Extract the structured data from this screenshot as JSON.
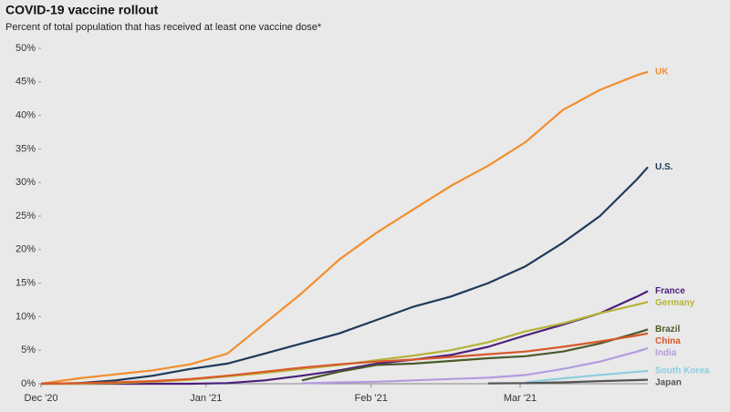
{
  "chart_data": {
    "type": "line",
    "title": "COVID-19 vaccine rollout",
    "subtitle": "Percent of total population that has received at least one vaccine dose*",
    "x": [
      0,
      7,
      14,
      21,
      28,
      35,
      42,
      49,
      56,
      63,
      70,
      77,
      84,
      91,
      98,
      105,
      112,
      114
    ],
    "xlim": [
      0,
      114
    ],
    "xticks": [
      {
        "value": 0,
        "label": "Dec '20"
      },
      {
        "value": 31,
        "label": "Jan '21"
      },
      {
        "value": 62,
        "label": "Feb '21"
      },
      {
        "value": 90,
        "label": "Mar '21"
      }
    ],
    "ylim": [
      0,
      50
    ],
    "yticks": [
      {
        "value": 0,
        "label": "0%"
      },
      {
        "value": 5,
        "label": "5%"
      },
      {
        "value": 10,
        "label": "10%"
      },
      {
        "value": 15,
        "label": "15%"
      },
      {
        "value": 20,
        "label": "20%"
      },
      {
        "value": 25,
        "label": "25%"
      },
      {
        "value": 30,
        "label": "30%"
      },
      {
        "value": 35,
        "label": "35%"
      },
      {
        "value": 40,
        "label": "40%"
      },
      {
        "value": 45,
        "label": "45%"
      },
      {
        "value": 50,
        "label": "50%"
      }
    ],
    "grid": false,
    "series": [
      {
        "name": "UK",
        "color": "#f28e2b",
        "values": [
          0,
          0.8,
          1.4,
          2.0,
          2.9,
          4.5,
          9.0,
          13.5,
          18.5,
          22.5,
          26,
          29.5,
          32.5,
          36,
          40.8,
          43.8,
          46.0,
          46.5
        ]
      },
      {
        "name": "U.S.",
        "color": "#1f3a5a",
        "values": [
          0,
          0.1,
          0.5,
          1.2,
          2.2,
          3,
          4.5,
          6,
          7.5,
          9.5,
          11.5,
          13,
          15,
          17.5,
          21,
          25,
          30.5,
          32.3
        ]
      },
      {
        "name": "France",
        "color": "#4b1f7a",
        "values": [
          0,
          0,
          0,
          0,
          0,
          0.1,
          0.5,
          1.2,
          2,
          3,
          3.6,
          4.3,
          5.5,
          7.2,
          8.8,
          10.5,
          13,
          13.8
        ]
      },
      {
        "name": "Germany",
        "color": "#b5b336",
        "values": [
          0,
          0,
          0.1,
          0.3,
          0.6,
          1.1,
          1.6,
          2.2,
          2.8,
          3.5,
          4.2,
          5,
          6.2,
          7.8,
          9,
          10.5,
          11.8,
          12.2
        ]
      },
      {
        "name": "Brazil",
        "color": "#4a5a2a",
        "values": [
          null,
          null,
          null,
          null,
          null,
          null,
          null,
          0.5,
          1.8,
          2.8,
          3,
          3.4,
          3.8,
          4.1,
          4.8,
          6,
          7.6,
          8.1
        ]
      },
      {
        "name": "China",
        "color": "#d9572b",
        "values": [
          0,
          0.1,
          0.2,
          0.4,
          0.7,
          1.2,
          1.8,
          2.4,
          2.9,
          3.3,
          3.6,
          4,
          4.4,
          4.8,
          5.5,
          6.3,
          7.2,
          7.5
        ]
      },
      {
        "name": "India",
        "color": "#b49be0",
        "values": [
          null,
          null,
          null,
          null,
          null,
          null,
          null,
          0.05,
          0.2,
          0.3,
          0.5,
          0.7,
          0.9,
          1.3,
          2.2,
          3.3,
          4.8,
          5.3
        ]
      },
      {
        "name": "South Korea",
        "color": "#8ecde0",
        "values": [
          null,
          null,
          null,
          null,
          null,
          null,
          null,
          null,
          null,
          null,
          null,
          null,
          null,
          0.2,
          0.8,
          1.3,
          1.8,
          1.9
        ]
      },
      {
        "name": "Japan",
        "color": "#555555",
        "values": [
          null,
          null,
          null,
          null,
          null,
          null,
          null,
          null,
          null,
          null,
          null,
          null,
          0.05,
          0.1,
          0.2,
          0.4,
          0.55,
          0.6
        ]
      }
    ]
  }
}
